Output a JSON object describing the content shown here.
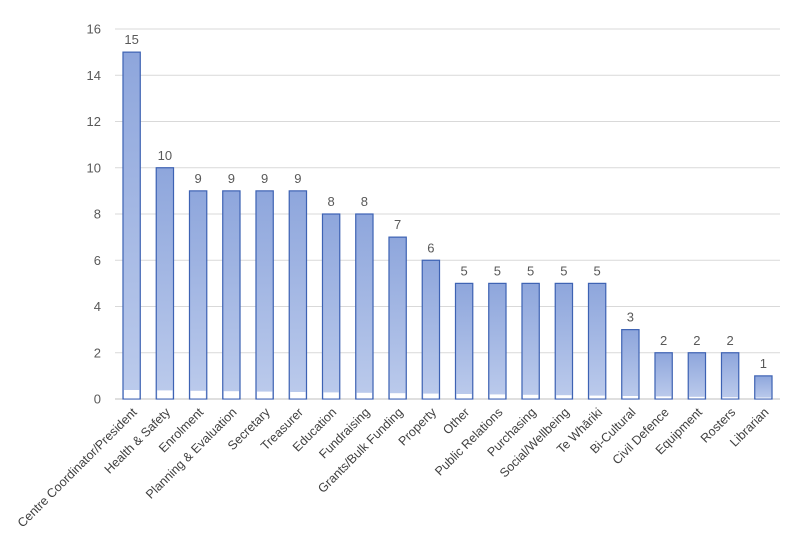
{
  "chart_data": {
    "type": "bar",
    "categories": [
      "Centre Coordinator/President",
      "Health & Safety",
      "Enrolment",
      "Planning & Evaluation",
      "Secretary",
      "Treasurer",
      "Education",
      "Fundraising",
      "Grants/Bulk Funding",
      "Property",
      "Other",
      "Public Relations",
      "Purchasing",
      "Social/Wellbeing",
      "Te Whāriki",
      "Bi-Cultural",
      "Civil Defence",
      "Equipment",
      "Rosters",
      "Librarian"
    ],
    "values": [
      15,
      10,
      9,
      9,
      9,
      9,
      8,
      8,
      7,
      6,
      5,
      5,
      5,
      5,
      5,
      3,
      2,
      2,
      2,
      1
    ],
    "title": "",
    "xlabel": "",
    "ylabel": "",
    "ylim": [
      0,
      16
    ],
    "yticks": [
      0,
      2,
      4,
      6,
      8,
      10,
      12,
      14,
      16
    ],
    "grid": true,
    "legend": "none",
    "data_labels": true,
    "colors": {
      "bar_fill_top": "#8ea6dc",
      "bar_fill_bottom": "#bccbec",
      "bar_edge": "#3d62b3",
      "grid": "#d9d9d9",
      "text": "#595959"
    }
  }
}
